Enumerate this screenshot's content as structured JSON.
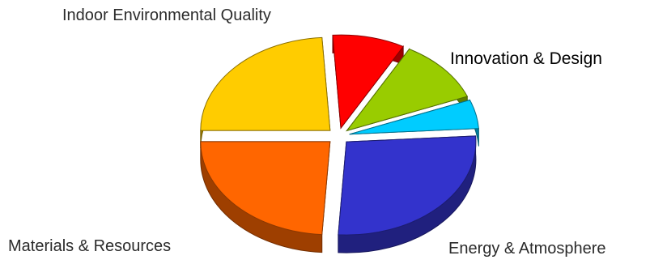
{
  "chart_data": {
    "type": "pie",
    "style": "3d-exploded",
    "title": "",
    "slices": [
      {
        "label": "Indoor Environmental Quality",
        "value": 24,
        "color": "#ffcc00"
      },
      {
        "label": "",
        "value": 9,
        "color": "#ff0000"
      },
      {
        "label": "Innovation & Design",
        "value": 11,
        "color": "#99cc00"
      },
      {
        "label": "",
        "value": 5,
        "color": "#00ccff"
      },
      {
        "label": "Energy & Atmosphere",
        "value": 27,
        "color": "#3333cc"
      },
      {
        "label": "Materials & Resources",
        "value": 24,
        "color": "#ff6600"
      }
    ],
    "legend": "none"
  }
}
